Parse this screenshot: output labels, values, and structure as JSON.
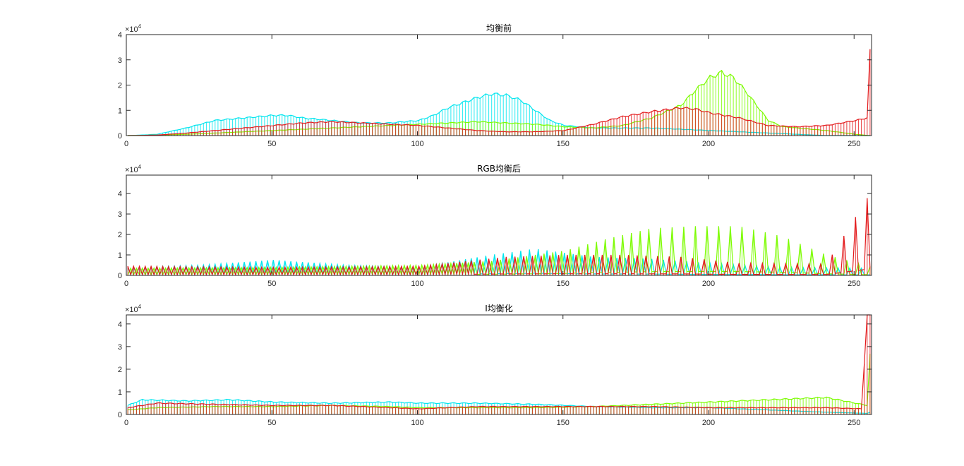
{
  "figure": {
    "background": "#ffffff",
    "axes_color": "#262626"
  },
  "chart_data": [
    {
      "type": "histogram",
      "title": "均衡前",
      "exponent_label": "×10",
      "exponent_power": "4",
      "xlim": [
        0,
        256
      ],
      "ylim": [
        0,
        4
      ],
      "xticks": [
        0,
        50,
        100,
        150,
        200,
        250
      ],
      "yticks": [
        0,
        1,
        2,
        3,
        4
      ],
      "grid": false,
      "series": [
        {
          "color": "#00e5ee",
          "points": [
            [
              0,
              0
            ],
            [
              10,
              0.05
            ],
            [
              20,
              0.3
            ],
            [
              30,
              0.6
            ],
            [
              40,
              0.7
            ],
            [
              50,
              0.8
            ],
            [
              55,
              0.8
            ],
            [
              60,
              0.7
            ],
            [
              70,
              0.6
            ],
            [
              80,
              0.5
            ],
            [
              90,
              0.5
            ],
            [
              100,
              0.6
            ],
            [
              105,
              0.8
            ],
            [
              110,
              1.1
            ],
            [
              115,
              1.3
            ],
            [
              120,
              1.5
            ],
            [
              125,
              1.65
            ],
            [
              130,
              1.6
            ],
            [
              135,
              1.4
            ],
            [
              140,
              1.0
            ],
            [
              145,
              0.6
            ],
            [
              150,
              0.4
            ],
            [
              160,
              0.3
            ],
            [
              170,
              0.3
            ],
            [
              180,
              0.3
            ],
            [
              190,
              0.25
            ],
            [
              200,
              0.2
            ],
            [
              210,
              0.15
            ],
            [
              220,
              0.1
            ],
            [
              230,
              0.05
            ],
            [
              240,
              0.0
            ],
            [
              250,
              0.0
            ],
            [
              256,
              0.0
            ]
          ]
        },
        {
          "color": "#7cfc00",
          "points": [
            [
              0,
              0
            ],
            [
              10,
              0.02
            ],
            [
              20,
              0.05
            ],
            [
              30,
              0.1
            ],
            [
              40,
              0.15
            ],
            [
              50,
              0.2
            ],
            [
              60,
              0.25
            ],
            [
              70,
              0.3
            ],
            [
              80,
              0.35
            ],
            [
              90,
              0.4
            ],
            [
              100,
              0.45
            ],
            [
              110,
              0.5
            ],
            [
              120,
              0.55
            ],
            [
              130,
              0.5
            ],
            [
              140,
              0.45
            ],
            [
              150,
              0.35
            ],
            [
              160,
              0.3
            ],
            [
              170,
              0.4
            ],
            [
              180,
              0.7
            ],
            [
              190,
              1.2
            ],
            [
              195,
              1.8
            ],
            [
              200,
              2.3
            ],
            [
              204,
              2.5
            ],
            [
              208,
              2.3
            ],
            [
              212,
              1.8
            ],
            [
              216,
              1.2
            ],
            [
              220,
              0.6
            ],
            [
              225,
              0.35
            ],
            [
              230,
              0.3
            ],
            [
              240,
              0.2
            ],
            [
              250,
              0.05
            ],
            [
              255,
              0.0
            ],
            [
              256,
              0.0
            ]
          ]
        },
        {
          "color": "#e31a1c",
          "points": [
            [
              0,
              0
            ],
            [
              10,
              0.02
            ],
            [
              20,
              0.1
            ],
            [
              30,
              0.2
            ],
            [
              40,
              0.3
            ],
            [
              50,
              0.4
            ],
            [
              60,
              0.5
            ],
            [
              70,
              0.55
            ],
            [
              80,
              0.5
            ],
            [
              90,
              0.45
            ],
            [
              100,
              0.4
            ],
            [
              110,
              0.3
            ],
            [
              120,
              0.2
            ],
            [
              130,
              0.15
            ],
            [
              140,
              0.15
            ],
            [
              150,
              0.2
            ],
            [
              160,
              0.45
            ],
            [
              170,
              0.75
            ],
            [
              180,
              0.95
            ],
            [
              190,
              1.1
            ],
            [
              195,
              1.05
            ],
            [
              200,
              0.9
            ],
            [
              210,
              0.7
            ],
            [
              220,
              0.4
            ],
            [
              230,
              0.35
            ],
            [
              240,
              0.4
            ],
            [
              250,
              0.6
            ],
            [
              254,
              0.7
            ],
            [
              255,
              3.3
            ],
            [
              256,
              3.3
            ]
          ]
        }
      ]
    },
    {
      "type": "histogram",
      "title": "RGB均衡后",
      "exponent_label": "×10",
      "exponent_power": "4",
      "xlim": [
        0,
        256
      ],
      "ylim": [
        0,
        4.9
      ],
      "xticks": [
        0,
        50,
        100,
        150,
        200,
        250
      ],
      "yticks": [
        0,
        1,
        2,
        3,
        4
      ],
      "grid": false,
      "series": [
        {
          "color": "#00e5ee",
          "peaks": [
            [
              0,
              0.4
            ],
            [
              25,
              0.5
            ],
            [
              50,
              0.75
            ],
            [
              75,
              0.5
            ],
            [
              100,
              0.4
            ],
            [
              125,
              1.0
            ],
            [
              140,
              1.3
            ],
            [
              160,
              0.9
            ],
            [
              180,
              0.8
            ],
            [
              200,
              0.6
            ],
            [
              225,
              0.4
            ],
            [
              256,
              0.35
            ]
          ]
        },
        {
          "color": "#7cfc00",
          "peaks": [
            [
              0,
              0.35
            ],
            [
              50,
              0.4
            ],
            [
              100,
              0.5
            ],
            [
              125,
              0.7
            ],
            [
              150,
              1.2
            ],
            [
              165,
              1.8
            ],
            [
              180,
              2.3
            ],
            [
              195,
              2.4
            ],
            [
              210,
              2.4
            ],
            [
              225,
              1.9
            ],
            [
              240,
              1.0
            ],
            [
              256,
              0.4
            ]
          ]
        },
        {
          "color": "#e31a1c",
          "peaks": [
            [
              0,
              0.45
            ],
            [
              50,
              0.4
            ],
            [
              100,
              0.45
            ],
            [
              130,
              0.9
            ],
            [
              150,
              1.0
            ],
            [
              170,
              1.0
            ],
            [
              190,
              0.9
            ],
            [
              210,
              0.6
            ],
            [
              240,
              0.55
            ],
            [
              255,
              4.0
            ],
            [
              256,
              4.0
            ]
          ]
        }
      ]
    },
    {
      "type": "histogram",
      "title": "I均衡化",
      "exponent_label": "×10",
      "exponent_power": "4",
      "xlim": [
        0,
        256
      ],
      "ylim": [
        0,
        4.4
      ],
      "xticks": [
        0,
        50,
        100,
        150,
        200,
        250
      ],
      "yticks": [
        0,
        1,
        2,
        3,
        4
      ],
      "grid": false,
      "series": [
        {
          "color": "#00e5ee",
          "points": [
            [
              0,
              0.4
            ],
            [
              5,
              0.65
            ],
            [
              20,
              0.6
            ],
            [
              35,
              0.65
            ],
            [
              50,
              0.55
            ],
            [
              70,
              0.5
            ],
            [
              90,
              0.55
            ],
            [
              100,
              0.5
            ],
            [
              120,
              0.5
            ],
            [
              140,
              0.45
            ],
            [
              160,
              0.35
            ],
            [
              180,
              0.3
            ],
            [
              200,
              0.3
            ],
            [
              220,
              0.2
            ],
            [
              240,
              0.1
            ],
            [
              254,
              0.05
            ],
            [
              255,
              0.1
            ],
            [
              256,
              0.1
            ]
          ]
        },
        {
          "color": "#7cfc00",
          "points": [
            [
              0,
              0.2
            ],
            [
              10,
              0.3
            ],
            [
              30,
              0.35
            ],
            [
              50,
              0.35
            ],
            [
              70,
              0.4
            ],
            [
              90,
              0.35
            ],
            [
              100,
              0.3
            ],
            [
              120,
              0.3
            ],
            [
              140,
              0.3
            ],
            [
              160,
              0.35
            ],
            [
              180,
              0.45
            ],
            [
              200,
              0.55
            ],
            [
              220,
              0.65
            ],
            [
              240,
              0.75
            ],
            [
              250,
              0.5
            ],
            [
              254,
              0.4
            ],
            [
              255,
              2.6
            ],
            [
              256,
              2.6
            ]
          ]
        },
        {
          "color": "#e31a1c",
          "points": [
            [
              0,
              0.3
            ],
            [
              10,
              0.5
            ],
            [
              30,
              0.45
            ],
            [
              50,
              0.4
            ],
            [
              70,
              0.4
            ],
            [
              90,
              0.3
            ],
            [
              100,
              0.25
            ],
            [
              120,
              0.35
            ],
            [
              140,
              0.35
            ],
            [
              160,
              0.35
            ],
            [
              180,
              0.35
            ],
            [
              200,
              0.3
            ],
            [
              220,
              0.3
            ],
            [
              240,
              0.3
            ],
            [
              252,
              0.25
            ],
            [
              254,
              4.4
            ],
            [
              256,
              4.4
            ]
          ]
        }
      ]
    }
  ]
}
